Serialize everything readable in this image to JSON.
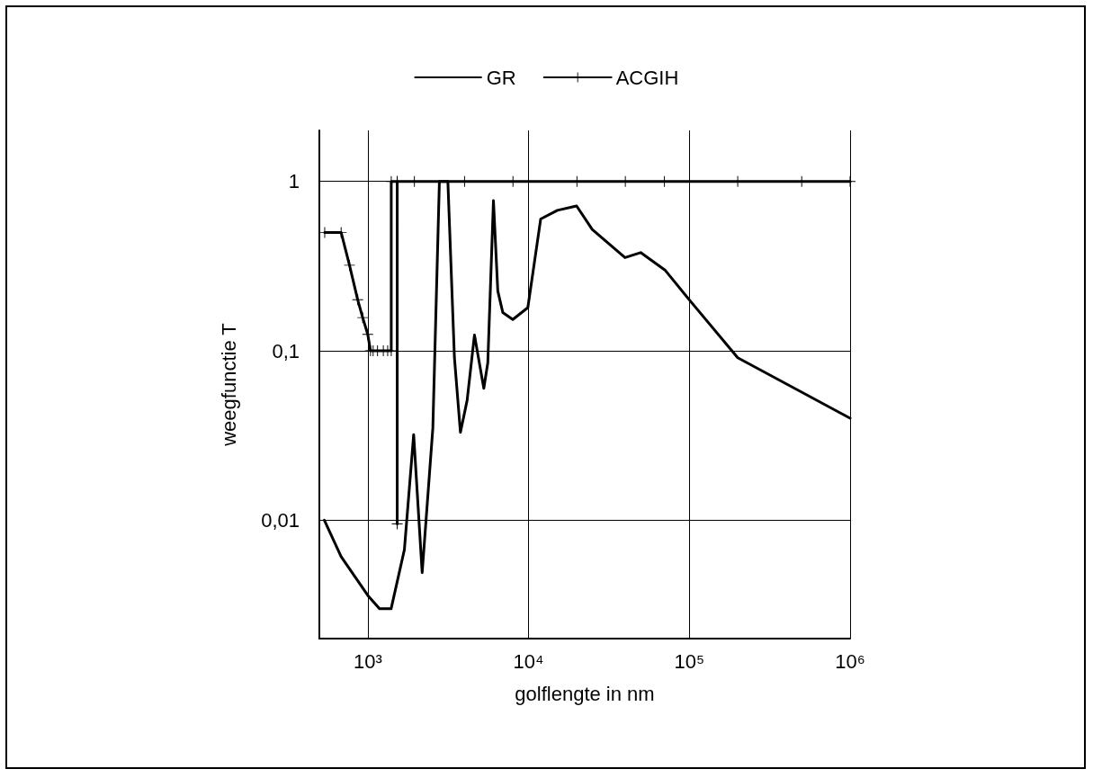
{
  "chart_data": {
    "type": "line",
    "xlabel": "golflengte in nm",
    "ylabel": "weegfunctie T",
    "log": "xy",
    "grid": true,
    "legend": "top",
    "xlim": [
      500,
      1000000
    ],
    "xticks": [
      {
        "value": 1000,
        "label": "10³"
      },
      {
        "value": 10000,
        "label": "10⁴"
      },
      {
        "value": 100000,
        "label": "10⁵"
      },
      {
        "value": 1000000,
        "label": "10⁶"
      }
    ],
    "ylim": [
      0.002,
      2
    ],
    "yticks": [
      {
        "value": 0.01,
        "label": "0,01"
      },
      {
        "value": 0.1,
        "label": "0,1"
      },
      1
    ],
    "series": [
      {
        "name": "GR",
        "color": "#000000",
        "marker": "none",
        "x": [
          537,
          683,
          1000,
          1183,
          1397,
          1690,
          1930,
          2180,
          2540,
          2790,
          3150,
          3460,
          3770,
          4150,
          4610,
          5270,
          5580,
          6050,
          6440,
          6920,
          7980,
          9900,
          11900,
          15100,
          19900,
          24900,
          39800,
          49800,
          70500,
          100000,
          200000,
          1000000
        ],
        "values": [
          0.01,
          0.0061,
          0.0036,
          0.003,
          0.003,
          0.0067,
          0.032,
          0.0049,
          0.035,
          1,
          1,
          0.091,
          0.033,
          0.051,
          0.124,
          0.06,
          0.085,
          0.77,
          0.225,
          0.168,
          0.153,
          0.18,
          0.6,
          0.675,
          0.716,
          0.52,
          0.355,
          0.38,
          0.3,
          0.2,
          0.091,
          0.04
        ]
      },
      {
        "name": "ACGIH",
        "color": "#000000",
        "marker": "cross",
        "x": [
          540,
          683,
          770,
          866,
          930,
          1000,
          1040,
          1080,
          1150,
          1250,
          1330,
          1400,
          1400,
          1525,
          1525,
          1525,
          1950,
          4000,
          8000,
          20000,
          40000,
          70000,
          200000,
          500000,
          1000000
        ],
        "values": [
          0.5,
          0.5,
          0.32,
          0.2,
          0.157,
          0.125,
          0.1,
          0.1,
          0.1,
          0.1,
          0.1,
          0.1,
          1,
          1,
          0.0095,
          1,
          1,
          1,
          1,
          1,
          1,
          1,
          1,
          1,
          1
        ]
      }
    ]
  }
}
